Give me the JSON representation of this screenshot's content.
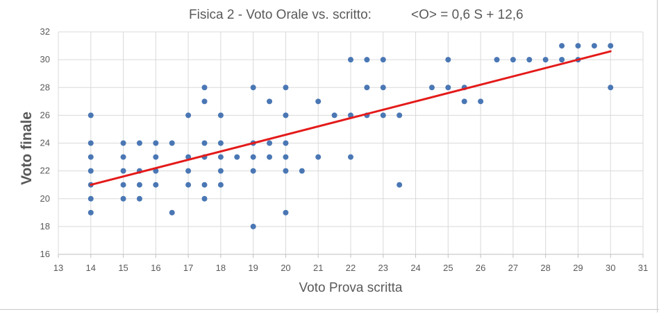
{
  "chart_data": {
    "type": "scatter",
    "title": "Fisica 2 - Voto Orale vs. scritto:",
    "subtitle": "<O> = 0,6 S + 12,6",
    "xlabel": "Voto Prova scritta",
    "ylabel": "Voto finale",
    "xlim": [
      13,
      31
    ],
    "ylim": [
      16,
      32
    ],
    "xticks": [
      "13",
      "14",
      "15",
      "16",
      "17",
      "18",
      "19",
      "20",
      "21",
      "22",
      "23",
      "24",
      "25",
      "26",
      "27",
      "28",
      "29",
      "30",
      "31"
    ],
    "yticks": [
      "16",
      "18",
      "20",
      "22",
      "24",
      "26",
      "28",
      "30",
      "32"
    ],
    "grid": true,
    "legend": "none",
    "colors": {
      "points": "#4a77b4",
      "trend": "#e41a1a",
      "grid": "#d9d9d9",
      "text": "#595959"
    },
    "trendline": {
      "slope": 0.6,
      "intercept": 12.6,
      "x_range": [
        14,
        30
      ]
    },
    "series": [
      {
        "points": [
          [
            14,
            26
          ],
          [
            14,
            24
          ],
          [
            14,
            23
          ],
          [
            14,
            22
          ],
          [
            14,
            21
          ],
          [
            14,
            20
          ],
          [
            14,
            19
          ],
          [
            15,
            24
          ],
          [
            15,
            23
          ],
          [
            15,
            22
          ],
          [
            15,
            21
          ],
          [
            15,
            20
          ],
          [
            15.5,
            24
          ],
          [
            15.5,
            22
          ],
          [
            15.5,
            21
          ],
          [
            15.5,
            20
          ],
          [
            16,
            24
          ],
          [
            16,
            23
          ],
          [
            16,
            22
          ],
          [
            16,
            21
          ],
          [
            16.5,
            24
          ],
          [
            16.5,
            19
          ],
          [
            17,
            26
          ],
          [
            17,
            23
          ],
          [
            17,
            22
          ],
          [
            17,
            21
          ],
          [
            17.5,
            28
          ],
          [
            17.5,
            27
          ],
          [
            17.5,
            24
          ],
          [
            17.5,
            23
          ],
          [
            17.5,
            21
          ],
          [
            17.5,
            20
          ],
          [
            18,
            26
          ],
          [
            18,
            24
          ],
          [
            18,
            23
          ],
          [
            18,
            22
          ],
          [
            18,
            21
          ],
          [
            18.5,
            23
          ],
          [
            19,
            28
          ],
          [
            19,
            24
          ],
          [
            19,
            23
          ],
          [
            19,
            22
          ],
          [
            19,
            18
          ],
          [
            19.5,
            27
          ],
          [
            19.5,
            24
          ],
          [
            19.5,
            23
          ],
          [
            20,
            28
          ],
          [
            20,
            26
          ],
          [
            20,
            24
          ],
          [
            20,
            23
          ],
          [
            20,
            22
          ],
          [
            20,
            19
          ],
          [
            20.5,
            22
          ],
          [
            21,
            27
          ],
          [
            21,
            23
          ],
          [
            21.5,
            26
          ],
          [
            22,
            30
          ],
          [
            22,
            26
          ],
          [
            22,
            23
          ],
          [
            22.5,
            30
          ],
          [
            22.5,
            28
          ],
          [
            22.5,
            26
          ],
          [
            23,
            30
          ],
          [
            23,
            28
          ],
          [
            23,
            26
          ],
          [
            23.5,
            26
          ],
          [
            23.5,
            21
          ],
          [
            24.5,
            28
          ],
          [
            25,
            30
          ],
          [
            25,
            28
          ],
          [
            25.5,
            28
          ],
          [
            25.5,
            27
          ],
          [
            26,
            27
          ],
          [
            26.5,
            30
          ],
          [
            27,
            30
          ],
          [
            27.5,
            30
          ],
          [
            28,
            30
          ],
          [
            28.5,
            31
          ],
          [
            28.5,
            30
          ],
          [
            29,
            31
          ],
          [
            29,
            30
          ],
          [
            29.5,
            31
          ],
          [
            30,
            31
          ],
          [
            30,
            28
          ]
        ]
      }
    ]
  }
}
